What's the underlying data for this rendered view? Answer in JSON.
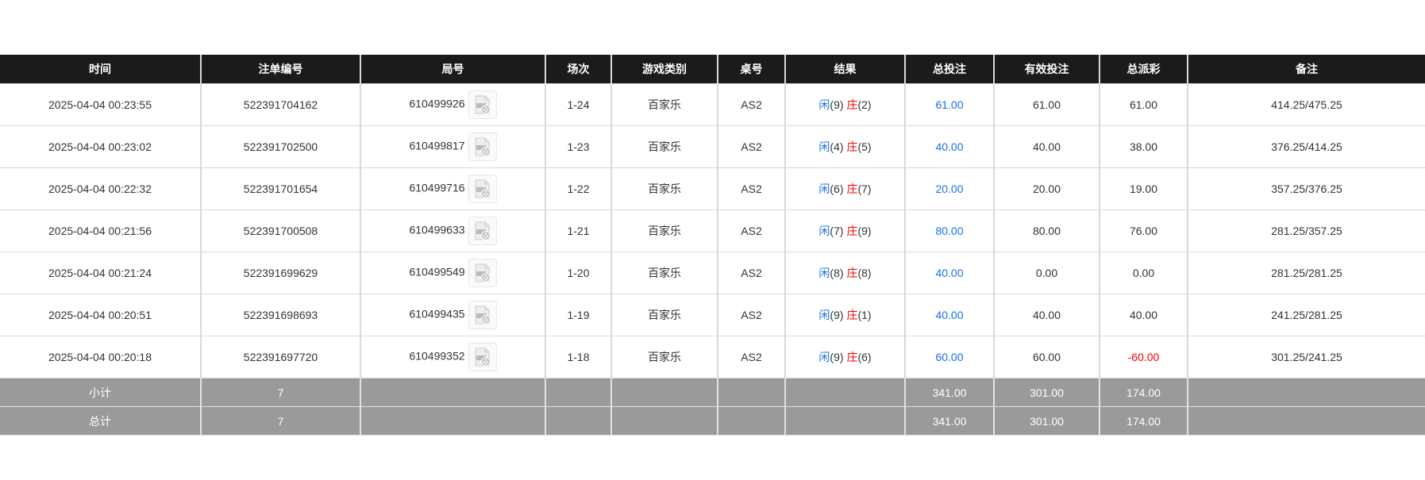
{
  "headers": [
    "时间",
    "注单编号",
    "局号",
    "场次",
    "游戏类别",
    "桌号",
    "结果",
    "总投注",
    "有效投注",
    "总派彩",
    "备注"
  ],
  "rows": [
    {
      "time": "2025-04-04 00:23:55",
      "bet_id": "522391704162",
      "round": "610499926",
      "shoe": "1-24",
      "game": "百家乐",
      "table": "AS2",
      "player_label": "闲",
      "player": "(9)",
      "banker_label": "庄",
      "banker": "(2)",
      "total_bet": "61.00",
      "valid_bet": "61.00",
      "payout": "61.00",
      "payout_negative": false,
      "remark": "414.25/475.25"
    },
    {
      "time": "2025-04-04 00:23:02",
      "bet_id": "522391702500",
      "round": "610499817",
      "shoe": "1-23",
      "game": "百家乐",
      "table": "AS2",
      "player_label": "闲",
      "player": "(4)",
      "banker_label": "庄",
      "banker": "(5)",
      "total_bet": "40.00",
      "valid_bet": "40.00",
      "payout": "38.00",
      "payout_negative": false,
      "remark": "376.25/414.25"
    },
    {
      "time": "2025-04-04 00:22:32",
      "bet_id": "522391701654",
      "round": "610499716",
      "shoe": "1-22",
      "game": "百家乐",
      "table": "AS2",
      "player_label": "闲",
      "player": "(6)",
      "banker_label": "庄",
      "banker": "(7)",
      "total_bet": "20.00",
      "valid_bet": "20.00",
      "payout": "19.00",
      "payout_negative": false,
      "remark": "357.25/376.25"
    },
    {
      "time": "2025-04-04 00:21:56",
      "bet_id": "522391700508",
      "round": "610499633",
      "shoe": "1-21",
      "game": "百家乐",
      "table": "AS2",
      "player_label": "闲",
      "player": "(7)",
      "banker_label": "庄",
      "banker": "(9)",
      "total_bet": "80.00",
      "valid_bet": "80.00",
      "payout": "76.00",
      "payout_negative": false,
      "remark": "281.25/357.25"
    },
    {
      "time": "2025-04-04 00:21:24",
      "bet_id": "522391699629",
      "round": "610499549",
      "shoe": "1-20",
      "game": "百家乐",
      "table": "AS2",
      "player_label": "闲",
      "player": "(8)",
      "banker_label": "庄",
      "banker": "(8)",
      "total_bet": "40.00",
      "valid_bet": "0.00",
      "payout": "0.00",
      "payout_negative": false,
      "remark": "281.25/281.25"
    },
    {
      "time": "2025-04-04 00:20:51",
      "bet_id": "522391698693",
      "round": "610499435",
      "shoe": "1-19",
      "game": "百家乐",
      "table": "AS2",
      "player_label": "闲",
      "player": "(9)",
      "banker_label": "庄",
      "banker": "(1)",
      "total_bet": "40.00",
      "valid_bet": "40.00",
      "payout": "40.00",
      "payout_negative": false,
      "remark": "241.25/281.25"
    },
    {
      "time": "2025-04-04 00:20:18",
      "bet_id": "522391697720",
      "round": "610499352",
      "shoe": "1-18",
      "game": "百家乐",
      "table": "AS2",
      "player_label": "闲",
      "player": "(9)",
      "banker_label": "庄",
      "banker": "(6)",
      "total_bet": "60.00",
      "valid_bet": "60.00",
      "payout": "-60.00",
      "payout_negative": true,
      "remark": "301.25/241.25"
    }
  ],
  "summary": [
    {
      "label": "小计",
      "count": "7",
      "total_bet": "341.00",
      "valid_bet": "301.00",
      "payout": "174.00"
    },
    {
      "label": "总计",
      "count": "7",
      "total_bet": "341.00",
      "valid_bet": "301.00",
      "payout": "174.00"
    }
  ],
  "colors": {
    "header_bg": "#1b1b1b",
    "player": "#1a6fe8",
    "banker": "#ff0000",
    "summary_bg": "#9a9a9a"
  },
  "icons": {
    "replay": "video-file-icon"
  }
}
